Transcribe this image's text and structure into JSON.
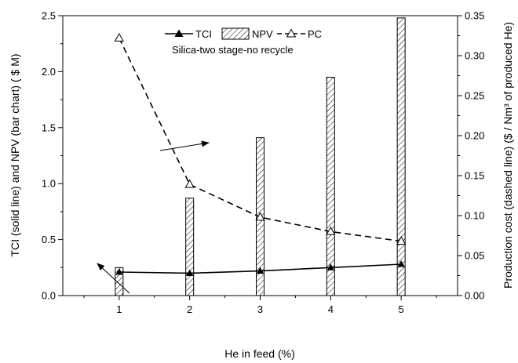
{
  "chart_data": {
    "type": "bar",
    "subtitle": "Silica-two stage-no recycle",
    "xlabel": "He in feed (%)",
    "ylabel_left": "TCI (solid line) and NPV (bar chart) ( $ M)",
    "ylabel_right": "Production cost (dashed line) ($ / Nm³ of produced He)",
    "x": [
      1,
      2,
      3,
      4,
      5
    ],
    "xlim": [
      0.2,
      5.8
    ],
    "ylim_left": [
      0,
      2.5
    ],
    "ylim_right": [
      0,
      0.35
    ],
    "yticks_left": [
      "0.0",
      "0.5",
      "1.0",
      "1.5",
      "2.0",
      "2.5"
    ],
    "yticks_right": [
      "0.00",
      "0.05",
      "0.10",
      "0.15",
      "0.20",
      "0.25",
      "0.30",
      "0.35"
    ],
    "xticks": [
      "1",
      "2",
      "3",
      "4",
      "5"
    ],
    "grid": false,
    "legend_position": "top-center",
    "series": [
      {
        "name": "TCI",
        "kind": "line-solid",
        "marker": "filled-triangle",
        "axis": "left",
        "values": [
          0.21,
          0.2,
          0.22,
          0.25,
          0.28
        ]
      },
      {
        "name": "NPV",
        "kind": "bar-hatched",
        "axis": "left",
        "values": [
          0.25,
          0.87,
          1.41,
          1.95,
          2.48
        ]
      },
      {
        "name": "PC",
        "kind": "line-dashed",
        "marker": "open-triangle",
        "axis": "right",
        "values": [
          0.322,
          0.139,
          0.098,
          0.08,
          0.068
        ]
      }
    ]
  }
}
